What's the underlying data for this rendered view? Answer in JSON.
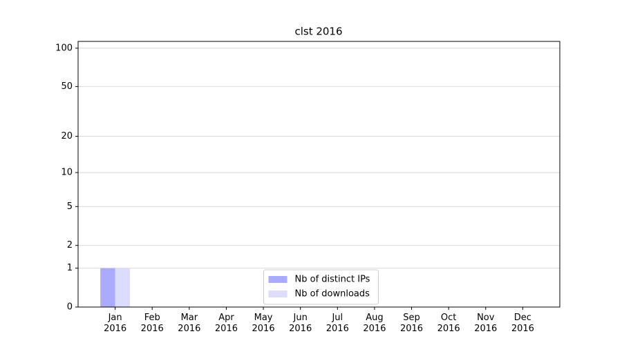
{
  "chart_data": {
    "type": "bar",
    "title": "clst 2016",
    "categories": [
      "Jan\n2016",
      "Feb\n2016",
      "Mar\n2016",
      "Apr\n2016",
      "May\n2016",
      "Jun\n2016",
      "Jul\n2016",
      "Aug\n2016",
      "Sep\n2016",
      "Oct\n2016",
      "Nov\n2016",
      "Dec\n2016"
    ],
    "series": [
      {
        "name": "Nb of distinct IPs",
        "color": "#aaaaff",
        "values": [
          1,
          0,
          0,
          0,
          0,
          0,
          0,
          0,
          0,
          0,
          0,
          0
        ]
      },
      {
        "name": "Nb of downloads",
        "color": "#dcdcfc",
        "values": [
          1,
          0,
          0,
          0,
          0,
          0,
          0,
          0,
          0,
          0,
          0,
          0
        ]
      }
    ],
    "yscale": "log1p",
    "ylim": [
      0,
      113
    ],
    "yticks": [
      0,
      1,
      2,
      5,
      10,
      20,
      50,
      100
    ],
    "grid": true,
    "legend": "lower center"
  }
}
